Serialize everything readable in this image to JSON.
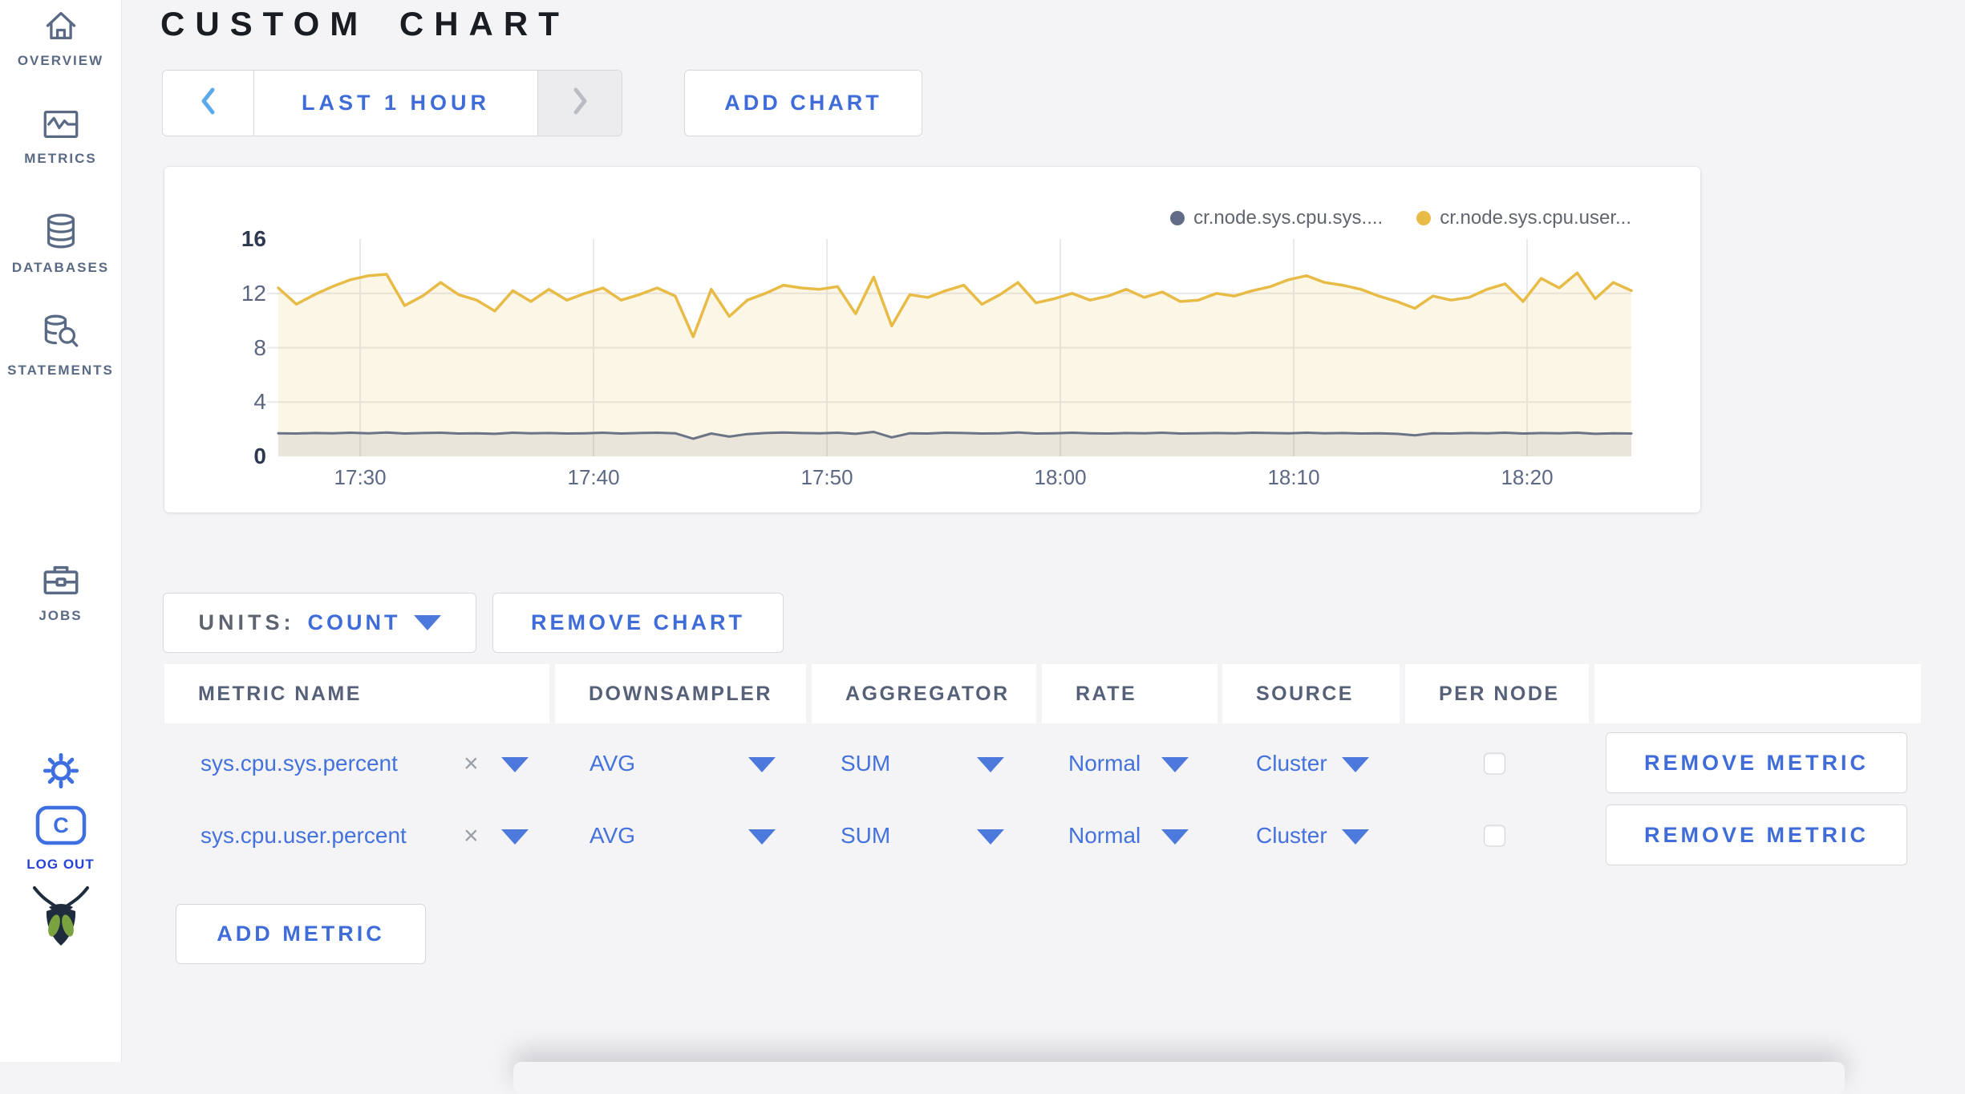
{
  "sidebar": {
    "items": [
      {
        "icon": "home-icon",
        "label": "OVERVIEW"
      },
      {
        "icon": "metrics-icon",
        "label": "METRICS"
      },
      {
        "icon": "database-icon",
        "label": "DATABASES"
      },
      {
        "icon": "statements-icon",
        "label": "STATEMENTS"
      },
      {
        "icon": "briefcase-icon",
        "label": "JOBS"
      }
    ],
    "logout": {
      "label": "LOG OUT"
    }
  },
  "header": {
    "title": "CUSTOM CHART"
  },
  "toolbar": {
    "time_range_label": "LAST 1 HOUR",
    "add_chart_label": "ADD CHART"
  },
  "chart_controls": {
    "units_label": "UNITS:",
    "units_value": "COUNT",
    "remove_chart_label": "REMOVE CHART"
  },
  "chart_data": {
    "type": "line",
    "grid": true,
    "legend_position": "top-right",
    "ylim": [
      0,
      16
    ],
    "y_ticks": [
      16,
      12,
      8,
      4,
      0
    ],
    "x_ticks": [
      "17:30",
      "17:40",
      "17:50",
      "18:00",
      "18:10",
      "18:20"
    ],
    "x_start": "17:26",
    "x_end": "18:24",
    "legend": [
      {
        "name": "cr.node.sys.cpu.sys....",
        "color": "#606c88"
      },
      {
        "name": "cr.node.sys.cpu.user...",
        "color": "#e7bb45"
      }
    ],
    "series": [
      {
        "name": "cr.node.sys.cpu.user...",
        "color": "#e7bb45",
        "fill": "rgba(231,187,69,0.13)",
        "line_width": 3.5,
        "values": [
          12.4,
          11.2,
          11.9,
          12.5,
          13.0,
          13.3,
          13.4,
          11.1,
          11.8,
          12.8,
          11.9,
          11.5,
          10.7,
          12.2,
          11.4,
          12.3,
          11.5,
          12.0,
          12.4,
          11.5,
          11.9,
          12.4,
          11.8,
          8.8,
          12.3,
          10.3,
          11.5,
          12.0,
          12.6,
          12.4,
          12.3,
          12.5,
          10.5,
          13.2,
          9.6,
          11.9,
          11.7,
          12.2,
          12.6,
          11.2,
          11.9,
          12.8,
          11.3,
          11.6,
          12.0,
          11.5,
          11.8,
          12.3,
          11.7,
          12.1,
          11.4,
          11.5,
          12.0,
          11.8,
          12.2,
          12.5,
          13.0,
          13.3,
          12.8,
          12.6,
          12.3,
          11.8,
          11.4,
          10.9,
          11.8,
          11.5,
          11.7,
          12.3,
          12.7,
          11.4,
          13.1,
          12.4,
          13.5,
          11.6,
          12.8,
          12.2
        ]
      },
      {
        "name": "cr.node.sys.cpu.sys....",
        "color": "#6b7485",
        "fill": "rgba(107,116,133,0.13)",
        "line_width": 3,
        "values": [
          1.7,
          1.68,
          1.72,
          1.7,
          1.74,
          1.7,
          1.76,
          1.68,
          1.72,
          1.74,
          1.68,
          1.7,
          1.66,
          1.74,
          1.7,
          1.72,
          1.68,
          1.7,
          1.74,
          1.68,
          1.72,
          1.74,
          1.7,
          1.3,
          1.68,
          1.45,
          1.64,
          1.72,
          1.76,
          1.72,
          1.7,
          1.74,
          1.66,
          1.8,
          1.4,
          1.7,
          1.68,
          1.74,
          1.72,
          1.68,
          1.7,
          1.76,
          1.68,
          1.7,
          1.74,
          1.7,
          1.68,
          1.72,
          1.7,
          1.74,
          1.68,
          1.7,
          1.72,
          1.7,
          1.74,
          1.72,
          1.7,
          1.74,
          1.7,
          1.72,
          1.68,
          1.7,
          1.66,
          1.55,
          1.7,
          1.68,
          1.72,
          1.7,
          1.74,
          1.68,
          1.72,
          1.7,
          1.74,
          1.66,
          1.7,
          1.68
        ]
      }
    ]
  },
  "metrics_table": {
    "columns": [
      "METRIC NAME",
      "DOWNSAMPLER",
      "AGGREGATOR",
      "RATE",
      "SOURCE",
      "PER NODE",
      ""
    ],
    "clear_symbol": "×",
    "rows": [
      {
        "metric_name": "sys.cpu.sys.percent",
        "downsampler": "AVG",
        "aggregator": "SUM",
        "rate": "Normal",
        "source": "Cluster",
        "per_node": false,
        "remove_label": "REMOVE METRIC"
      },
      {
        "metric_name": "sys.cpu.user.percent",
        "downsampler": "AVG",
        "aggregator": "SUM",
        "rate": "Normal",
        "source": "Cluster",
        "per_node": false,
        "remove_label": "REMOVE METRIC"
      }
    ],
    "add_metric_label": "ADD METRIC"
  },
  "colors": {
    "accent_blue": "#3f6cd9",
    "link_blue": "#4472dc",
    "logout_blue": "#2743d6",
    "sidebar_slate": "#5a6a85",
    "series_yellow": "#e7bb45",
    "series_gray": "#6b7485",
    "page_bg": "#f4f4f6"
  }
}
